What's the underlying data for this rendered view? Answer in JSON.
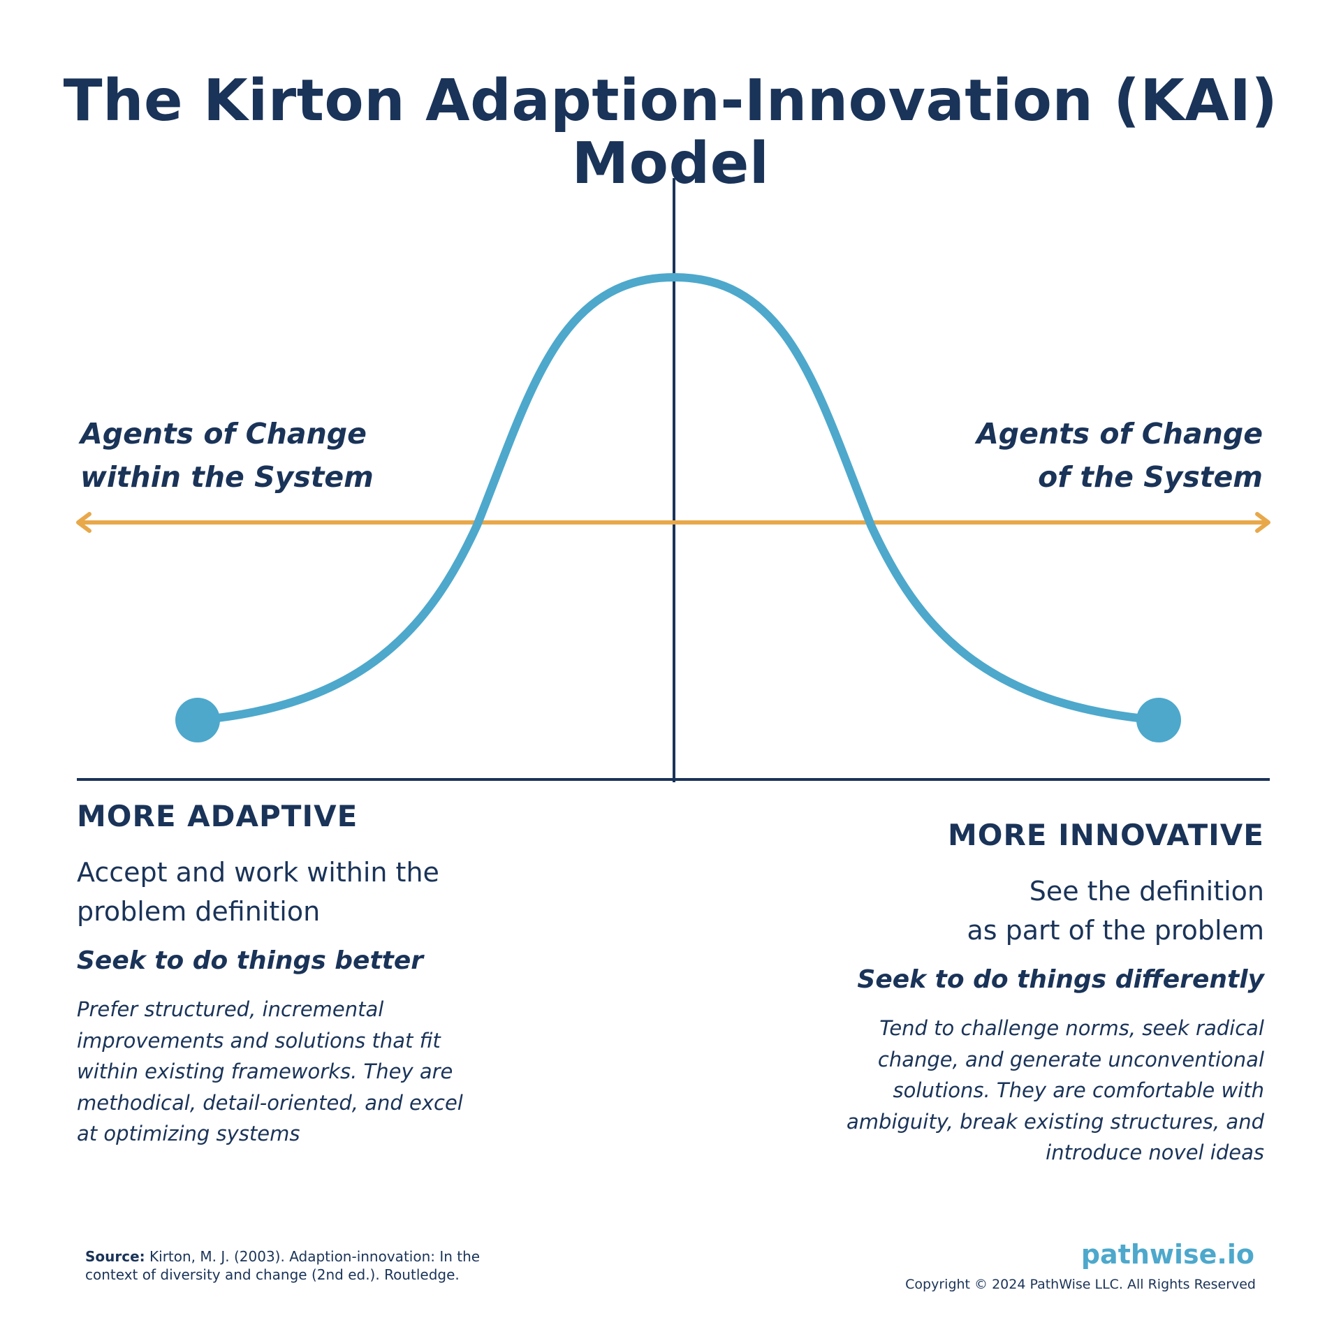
{
  "title": "The Kirton Adaption-Innovation (KAI) Model",
  "colors": {
    "navy": "#1a3358",
    "curve": "#4da8cc",
    "arrow": "#e8a84a",
    "background": "#ffffff"
  },
  "diagram": {
    "left_label": [
      "Agents of Change",
      "within the System"
    ],
    "right_label": [
      "Agents of Change",
      "of the System"
    ]
  },
  "adaptive": {
    "heading": "MORE ADAPTIVE",
    "description": [
      "Accept and work within the",
      "problem definition"
    ],
    "tagline": "Seek to do things better",
    "detail": [
      "Prefer structured, incremental",
      "improvements and solutions that fit",
      "within existing frameworks. They are",
      "methodical, detail-oriented, and excel",
      "at optimizing systems"
    ]
  },
  "innovative": {
    "heading": "MORE INNOVATIVE",
    "description": [
      "See the definition",
      "as part of the problem"
    ],
    "tagline": "Seek to do things differently",
    "detail": [
      "Tend to challenge norms, seek radical",
      "change, and generate unconventional",
      "solutions. They are comfortable with",
      "ambiguity, break existing structures, and",
      "introduce novel ideas"
    ]
  },
  "footer": {
    "source_label": "Source:",
    "source_line1": "Kirton, M. J. (2003). Adaption-innovation: In the",
    "source_line2": "context of diversity and change (2nd ed.). Routledge.",
    "brand": "pathwise.io",
    "copyright": "Copyright © 2024 PathWise LLC. All Rights Reserved"
  }
}
